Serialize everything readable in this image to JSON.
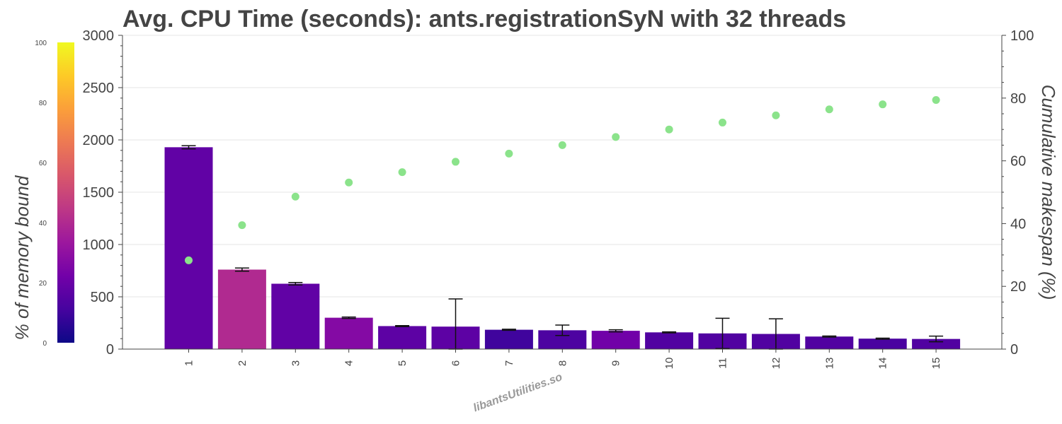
{
  "chart_data": {
    "type": "bar",
    "title": "Avg. CPU Time (seconds): ants.registrationSyN with 32 threads",
    "categories": [
      "1",
      "2",
      "3",
      "4",
      "5",
      "6",
      "7",
      "8",
      "9",
      "10",
      "11",
      "12",
      "13",
      "14",
      "15"
    ],
    "series": [
      {
        "type": "bar",
        "axis": "left",
        "values": [
          1930,
          760,
          625,
          300,
          220,
          215,
          185,
          180,
          175,
          160,
          150,
          145,
          120,
          100,
          97
        ],
        "error": [
          15,
          15,
          12,
          7,
          5,
          265,
          5,
          50,
          10,
          5,
          145,
          145,
          5,
          5,
          27
        ],
        "memory_bound_pct": [
          18,
          40,
          18,
          27,
          17,
          17,
          10,
          13,
          22,
          14,
          14,
          14,
          14,
          12,
          14
        ]
      },
      {
        "type": "scatter",
        "axis": "right",
        "values": [
          28.3,
          39.5,
          48.6,
          53.1,
          56.4,
          59.7,
          62.3,
          65.0,
          67.6,
          70.0,
          72.2,
          74.5,
          76.4,
          78.0,
          79.4
        ],
        "color": "#8be38b"
      }
    ],
    "ylabel_left": "",
    "ylim_left": [
      0,
      3000
    ],
    "yticks_left": [
      "0",
      "500",
      "1000",
      "1500",
      "2000",
      "2500",
      "3000"
    ],
    "ylabel_right": "Cumulative makespan (%)",
    "ylim_right": [
      0,
      100
    ],
    "yticks_right": [
      "0",
      "20",
      "40",
      "60",
      "80",
      "100"
    ],
    "colorbar": {
      "label": "% of memory bound",
      "range": [
        0,
        100
      ],
      "ticks": [
        "0",
        "20",
        "40",
        "60",
        "80",
        "100"
      ],
      "colorscale": "plasma"
    },
    "annotation": "libantsUtilities.so",
    "grid": true
  }
}
